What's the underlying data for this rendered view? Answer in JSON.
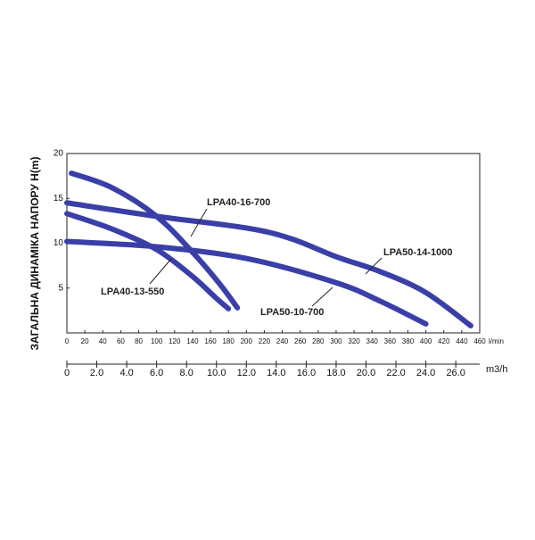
{
  "chart_data": {
    "type": "line",
    "ylabel": "ЗАГАЛЬНА ДИНАМІКА НАПОРУ H(m)",
    "xlabel": "l/min",
    "x2label": "m3/h",
    "xlim": [
      0,
      460
    ],
    "xticks": [
      0,
      20,
      40,
      60,
      80,
      100,
      120,
      140,
      160,
      180,
      200,
      220,
      240,
      260,
      280,
      300,
      320,
      340,
      360,
      380,
      400,
      420,
      440,
      460
    ],
    "x2lim": [
      0,
      27.6
    ],
    "x2ticks": [
      0,
      {
        "value": 2,
        "label": "2.0"
      },
      {
        "value": 4,
        "label": "4.0"
      },
      {
        "value": 6,
        "label": "6.0"
      },
      {
        "value": 8,
        "label": "8.0"
      },
      {
        "value": 10,
        "label": "10.0"
      },
      {
        "value": 12,
        "label": "12.0"
      },
      {
        "value": 14,
        "label": "14.0"
      },
      {
        "value": 16,
        "label": "16.0"
      },
      {
        "value": 18,
        "label": "18.0"
      },
      {
        "value": 20,
        "label": "20.0"
      },
      {
        "value": 22,
        "label": "22.0"
      },
      {
        "value": 24,
        "label": "24.0"
      },
      {
        "value": 26,
        "label": "26.0"
      }
    ],
    "ylim": [
      0,
      20
    ],
    "yticks": [
      5,
      10,
      15,
      20
    ],
    "grid": false,
    "series": [
      {
        "name": "LPA40-16-700",
        "color": "#3a3fa8",
        "x": [
          5,
          50,
          100,
          140,
          170,
          190
        ],
        "values": [
          17.8,
          16.2,
          13.0,
          9.0,
          5.5,
          2.8
        ]
      },
      {
        "name": "LPA40-13-550",
        "color": "#3a3fa8",
        "x": [
          0,
          50,
          100,
          140,
          165,
          180
        ],
        "values": [
          13.3,
          11.6,
          9.3,
          6.3,
          4.0,
          2.7
        ]
      },
      {
        "name": "LPA50-14-1000",
        "color": "#3a3fa8",
        "x": [
          0,
          100,
          200,
          250,
          300,
          350,
          400,
          450
        ],
        "values": [
          14.5,
          13.0,
          11.7,
          10.5,
          8.5,
          6.8,
          4.5,
          0.8
        ]
      },
      {
        "name": "LPA50-10-700",
        "color": "#3a3fa8",
        "x": [
          0,
          100,
          200,
          300,
          350,
          400
        ],
        "values": [
          10.2,
          9.6,
          8.3,
          5.6,
          3.5,
          1.0
        ]
      }
    ]
  }
}
